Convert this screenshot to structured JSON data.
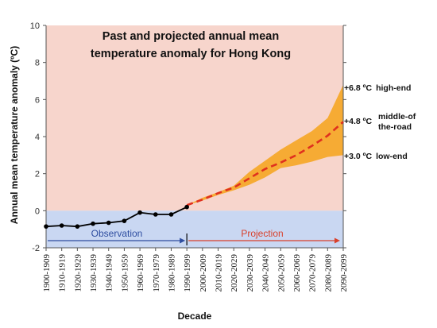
{
  "chart_data": {
    "type": "line",
    "title_lines": [
      "Past and projected annual mean",
      "temperature anomaly for Hong Kong"
    ],
    "xlabel": "Decade",
    "ylabel": "Annual mean temperature anomaly (ºC)",
    "ylim": [
      -2,
      10
    ],
    "yticks": [
      -2,
      0,
      2,
      4,
      6,
      8,
      10
    ],
    "grid": false,
    "categories": [
      "1900-1909",
      "1910-1919",
      "1920-1929",
      "1930-1939",
      "1940-1949",
      "1950-1959",
      "1960-1969",
      "1970-1979",
      "1980-1989",
      "1990-1999",
      "2000-2009",
      "2010-2019",
      "2020-2029",
      "2030-2039",
      "2040-2049",
      "2050-2059",
      "2060-2069",
      "2070-2079",
      "2080-2089",
      "2090-2099"
    ],
    "series": [
      {
        "name": "Observation",
        "style": "solid-black-with-markers",
        "values": [
          -0.85,
          -0.8,
          -0.85,
          -0.7,
          -0.65,
          -0.55,
          -0.1,
          -0.2,
          -0.2,
          0.2,
          null,
          null,
          null,
          null,
          null,
          null,
          null,
          null,
          null,
          null
        ]
      },
      {
        "name": "Projection",
        "style": "dashed-red",
        "values": [
          null,
          null,
          null,
          null,
          null,
          null,
          null,
          null,
          null,
          0.3,
          0.6,
          0.95,
          1.25,
          1.75,
          2.25,
          2.6,
          3.0,
          3.5,
          4.05,
          4.8
        ]
      }
    ],
    "projection_range": {
      "low": [
        null,
        null,
        null,
        null,
        null,
        null,
        null,
        null,
        null,
        0.3,
        0.55,
        0.85,
        1.1,
        1.4,
        1.8,
        2.3,
        2.45,
        2.65,
        2.9,
        3.0
      ],
      "high": [
        null,
        null,
        null,
        null,
        null,
        null,
        null,
        null,
        null,
        0.3,
        0.7,
        1.0,
        1.35,
        2.1,
        2.7,
        3.3,
        3.8,
        4.3,
        5.0,
        6.8
      ]
    },
    "annotations": [
      {
        "value": "+6.8 ºC",
        "label": "high-end"
      },
      {
        "value": "+4.8 ºC",
        "label_lines": [
          "middle-of",
          "the-road"
        ]
      },
      {
        "value": "+3.0 ºC",
        "label": "low-end"
      }
    ],
    "bands": [
      {
        "label": "Observation",
        "range": [
          "1900-1909",
          "1990-1999"
        ]
      },
      {
        "label": "Projection",
        "range": [
          "1990-1999",
          "2090-2099"
        ]
      }
    ],
    "colors": {
      "upper_background": "#F7D5CC",
      "lower_background": "#C9D7F2",
      "observation_line": "#000000",
      "projection_line": "#E0301E",
      "projection_band": "#F5A623",
      "observation_label": "#2E4DA0",
      "projection_label": "#D9402B"
    }
  }
}
